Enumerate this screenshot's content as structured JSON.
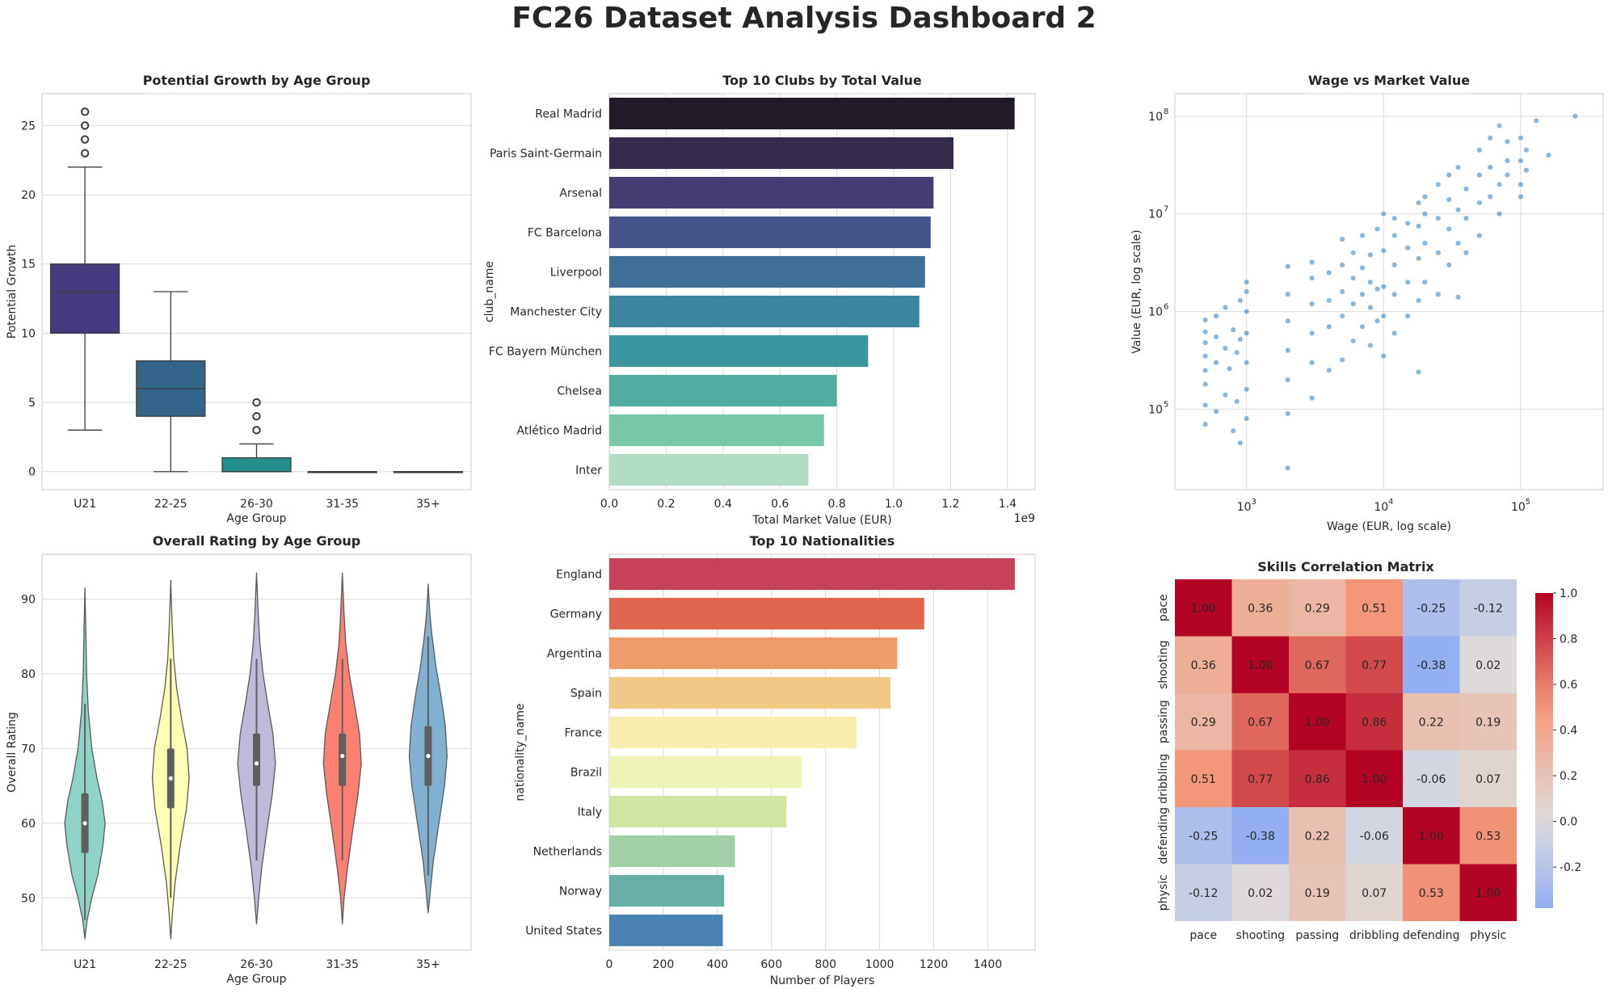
{
  "title": "FC26 Dataset Analysis Dashboard 2",
  "chart_data": [
    {
      "id": "growth_box",
      "type": "box",
      "title": "Potential Growth by Age Group",
      "xlabel": "Age Group",
      "ylabel": "Potential Growth",
      "categories": [
        "U21",
        "22-25",
        "26-30",
        "31-35",
        "35+"
      ],
      "ylim": [
        -1.3,
        27.3
      ],
      "yticks": [
        0,
        5,
        10,
        15,
        20,
        25
      ],
      "boxes": [
        {
          "q1": 10,
          "median": 13,
          "q3": 15,
          "whisker_low": 3,
          "whisker_high": 22,
          "outliers": [
            23,
            24,
            25,
            26
          ]
        },
        {
          "q1": 4,
          "median": 6,
          "q3": 8,
          "whisker_low": 0,
          "whisker_high": 13,
          "outliers": []
        },
        {
          "q1": 0,
          "median": 0,
          "q3": 1,
          "whisker_low": 0,
          "whisker_high": 2,
          "outliers": [
            3,
            4,
            5
          ]
        },
        {
          "q1": 0,
          "median": 0,
          "q3": 0,
          "whisker_low": 0,
          "whisker_high": 0,
          "outliers": []
        },
        {
          "q1": 0,
          "median": 0,
          "q3": 0,
          "whisker_low": 0,
          "whisker_high": 0,
          "outliers": []
        }
      ],
      "colors": [
        "#46397e",
        "#33658b",
        "#238f8b",
        "#48b36f",
        "#b2d637"
      ]
    },
    {
      "id": "clubs_bar",
      "type": "bar",
      "orientation": "horizontal",
      "title": "Top 10 Clubs by Total Value",
      "xlabel": "Total Market Value (EUR)",
      "ylabel": "club_name",
      "offset_label": "1e9",
      "categories": [
        "Real Madrid",
        "Paris Saint-Germain",
        "Arsenal",
        "FC Barcelona",
        "Liverpool",
        "Manchester City",
        "FC Bayern München",
        "Chelsea",
        "Atlético Madrid",
        "Inter"
      ],
      "values": [
        1.425,
        1.21,
        1.14,
        1.13,
        1.11,
        1.09,
        0.91,
        0.8,
        0.755,
        0.7
      ],
      "xlim": [
        0,
        1.497
      ],
      "xticks": [
        0.0,
        0.2,
        0.4,
        0.6,
        0.8,
        1.0,
        1.2,
        1.4
      ],
      "colors": [
        "#221a28",
        "#352b4a",
        "#433d73",
        "#45548d",
        "#3f6e97",
        "#3b869e",
        "#3a969d",
        "#4fae9f",
        "#78c7a8",
        "#b2ddc4"
      ]
    },
    {
      "id": "wage_scatter",
      "type": "scatter",
      "title": "Wage vs Market Value",
      "xlabel": "Wage (EUR, log scale)",
      "ylabel": "Value (EUR, log scale)",
      "xscale": "log",
      "yscale": "log",
      "xlim": [
        300,
        400000
      ],
      "ylim": [
        15000,
        170000000
      ],
      "xticks": [
        "10^3",
        "10^4",
        "10^5"
      ],
      "yticks": [
        "10^5",
        "10^6",
        "10^7",
        "10^8"
      ],
      "color": "#2a7bbf",
      "points": [
        [
          500,
          70000
        ],
        [
          500,
          110000
        ],
        [
          500,
          180000
        ],
        [
          500,
          250000
        ],
        [
          500,
          350000
        ],
        [
          500,
          480000
        ],
        [
          500,
          620000
        ],
        [
          500,
          820000
        ],
        [
          600,
          95000
        ],
        [
          600,
          300000
        ],
        [
          600,
          550000
        ],
        [
          600,
          900000
        ],
        [
          700,
          140000
        ],
        [
          700,
          420000
        ],
        [
          700,
          1100000
        ],
        [
          750,
          260000
        ],
        [
          800,
          60000
        ],
        [
          800,
          650000
        ],
        [
          850,
          120000
        ],
        [
          850,
          380000
        ],
        [
          900,
          45000
        ],
        [
          900,
          520000
        ],
        [
          900,
          1300000
        ],
        [
          1000,
          80000
        ],
        [
          1000,
          160000
        ],
        [
          1000,
          300000
        ],
        [
          1000,
          600000
        ],
        [
          1000,
          1000000
        ],
        [
          1000,
          1600000
        ],
        [
          1000,
          2000000
        ],
        [
          2000,
          25000
        ],
        [
          2000,
          90000
        ],
        [
          2000,
          200000
        ],
        [
          2000,
          400000
        ],
        [
          2000,
          800000
        ],
        [
          2000,
          1500000
        ],
        [
          2000,
          2900000
        ],
        [
          3000,
          130000
        ],
        [
          3000,
          300000
        ],
        [
          3000,
          600000
        ],
        [
          3000,
          1200000
        ],
        [
          3000,
          2200000
        ],
        [
          3000,
          3200000
        ],
        [
          4000,
          250000
        ],
        [
          4000,
          700000
        ],
        [
          4000,
          1300000
        ],
        [
          4000,
          2500000
        ],
        [
          5000,
          320000
        ],
        [
          5000,
          900000
        ],
        [
          5000,
          1600000
        ],
        [
          5000,
          3000000
        ],
        [
          5000,
          5500000
        ],
        [
          6000,
          500000
        ],
        [
          6000,
          1200000
        ],
        [
          6000,
          2200000
        ],
        [
          6000,
          4000000
        ],
        [
          7000,
          700000
        ],
        [
          7000,
          1500000
        ],
        [
          7000,
          2800000
        ],
        [
          7000,
          6000000
        ],
        [
          8000,
          450000
        ],
        [
          8000,
          1100000
        ],
        [
          8000,
          2000000
        ],
        [
          8000,
          3800000
        ],
        [
          9000,
          800000
        ],
        [
          9000,
          1700000
        ],
        [
          9000,
          7000000
        ],
        [
          10000,
          350000
        ],
        [
          10000,
          900000
        ],
        [
          10000,
          1800000
        ],
        [
          10000,
          4200000
        ],
        [
          10000,
          10000000
        ],
        [
          12000,
          600000
        ],
        [
          12000,
          1500000
        ],
        [
          12000,
          3000000
        ],
        [
          12000,
          6000000
        ],
        [
          12000,
          9000000
        ],
        [
          15000,
          900000
        ],
        [
          15000,
          2000000
        ],
        [
          15000,
          4500000
        ],
        [
          15000,
          8000000
        ],
        [
          18000,
          240000
        ],
        [
          18000,
          1300000
        ],
        [
          18000,
          3500000
        ],
        [
          18000,
          7500000
        ],
        [
          18000,
          13000000
        ],
        [
          20000,
          2000000
        ],
        [
          20000,
          5000000
        ],
        [
          20000,
          10000000
        ],
        [
          20000,
          15000000
        ],
        [
          25000,
          1500000
        ],
        [
          25000,
          4000000
        ],
        [
          25000,
          9000000
        ],
        [
          25000,
          20000000
        ],
        [
          30000,
          3000000
        ],
        [
          30000,
          7000000
        ],
        [
          30000,
          14000000
        ],
        [
          30000,
          25000000
        ],
        [
          35000,
          1400000
        ],
        [
          35000,
          5000000
        ],
        [
          35000,
          11000000
        ],
        [
          35000,
          30000000
        ],
        [
          40000,
          4000000
        ],
        [
          40000,
          9000000
        ],
        [
          40000,
          18000000
        ],
        [
          50000,
          6000000
        ],
        [
          50000,
          13000000
        ],
        [
          50000,
          25000000
        ],
        [
          50000,
          45000000
        ],
        [
          60000,
          15000000
        ],
        [
          60000,
          30000000
        ],
        [
          60000,
          60000000
        ],
        [
          70000,
          10000000
        ],
        [
          70000,
          20000000
        ],
        [
          70000,
          80000000
        ],
        [
          80000,
          25000000
        ],
        [
          80000,
          35000000
        ],
        [
          80000,
          55000000
        ],
        [
          100000,
          15000000
        ],
        [
          100000,
          20000000
        ],
        [
          100000,
          35000000
        ],
        [
          100000,
          60000000
        ],
        [
          110000,
          28000000
        ],
        [
          110000,
          45000000
        ],
        [
          130000,
          90000000
        ],
        [
          160000,
          40000000
        ],
        [
          250000,
          100000000
        ]
      ]
    },
    {
      "id": "rating_violin",
      "type": "violin",
      "title": "Overall Rating by Age Group",
      "xlabel": "Age Group",
      "ylabel": "Overall Rating",
      "categories": [
        "U21",
        "22-25",
        "26-30",
        "31-35",
        "35+"
      ],
      "ylim": [
        43,
        96
      ],
      "yticks": [
        50,
        60,
        70,
        80,
        90
      ],
      "violins": [
        {
          "min": 44.5,
          "max": 91.5,
          "q1": 56,
          "median": 60,
          "q3": 64,
          "wlow": 47,
          "whigh": 76,
          "profile": [
            [
              44.5,
              0
            ],
            [
              47,
              0.05
            ],
            [
              50,
              0.16
            ],
            [
              53,
              0.3
            ],
            [
              57,
              0.42
            ],
            [
              60,
              0.47
            ],
            [
              63,
              0.4
            ],
            [
              66,
              0.28
            ],
            [
              70,
              0.16
            ],
            [
              75,
              0.08
            ],
            [
              80,
              0.04
            ],
            [
              86,
              0.02
            ],
            [
              91.5,
              0
            ]
          ]
        },
        {
          "min": 44.5,
          "max": 92.5,
          "q1": 62,
          "median": 66,
          "q3": 70,
          "wlow": 50,
          "whigh": 82,
          "profile": [
            [
              44.5,
              0
            ],
            [
              48,
              0.04
            ],
            [
              52,
              0.1
            ],
            [
              57,
              0.22
            ],
            [
              62,
              0.37
            ],
            [
              66,
              0.43
            ],
            [
              70,
              0.38
            ],
            [
              74,
              0.25
            ],
            [
              78,
              0.14
            ],
            [
              82,
              0.07
            ],
            [
              87,
              0.03
            ],
            [
              92.5,
              0
            ]
          ]
        },
        {
          "min": 46.5,
          "max": 93.5,
          "q1": 65,
          "median": 68,
          "q3": 72,
          "wlow": 55,
          "whigh": 82,
          "profile": [
            [
              46.5,
              0
            ],
            [
              50,
              0.05
            ],
            [
              54,
              0.12
            ],
            [
              59,
              0.24
            ],
            [
              64,
              0.37
            ],
            [
              68,
              0.44
            ],
            [
              72,
              0.38
            ],
            [
              76,
              0.26
            ],
            [
              80,
              0.15
            ],
            [
              84,
              0.08
            ],
            [
              88,
              0.04
            ],
            [
              93.5,
              0
            ]
          ]
        },
        {
          "min": 46.5,
          "max": 93.5,
          "q1": 65,
          "median": 69,
          "q3": 72,
          "wlow": 55,
          "whigh": 82,
          "profile": [
            [
              46.5,
              0
            ],
            [
              50,
              0.04
            ],
            [
              54,
              0.12
            ],
            [
              59,
              0.24
            ],
            [
              64,
              0.37
            ],
            [
              68,
              0.44
            ],
            [
              72,
              0.4
            ],
            [
              76,
              0.28
            ],
            [
              80,
              0.16
            ],
            [
              84,
              0.08
            ],
            [
              88,
              0.04
            ],
            [
              93.5,
              0
            ]
          ]
        },
        {
          "min": 48,
          "max": 92,
          "q1": 65,
          "median": 69,
          "q3": 73,
          "wlow": 53,
          "whigh": 85,
          "profile": [
            [
              48,
              0
            ],
            [
              51,
              0.05
            ],
            [
              55,
              0.12
            ],
            [
              60,
              0.25
            ],
            [
              65,
              0.38
            ],
            [
              69,
              0.44
            ],
            [
              73,
              0.4
            ],
            [
              77,
              0.3
            ],
            [
              81,
              0.18
            ],
            [
              85,
              0.09
            ],
            [
              88,
              0.04
            ],
            [
              92,
              0
            ]
          ]
        }
      ],
      "colors": [
        "#8dd3c7",
        "#ffffb3",
        "#bebada",
        "#fb8072",
        "#80b1d3"
      ]
    },
    {
      "id": "nation_bar",
      "type": "bar",
      "orientation": "horizontal",
      "title": "Top 10 Nationalities",
      "xlabel": "Number of Players",
      "ylabel": "nationality_name",
      "categories": [
        "England",
        "Germany",
        "Argentina",
        "Spain",
        "France",
        "Brazil",
        "Italy",
        "Netherlands",
        "Norway",
        "United States"
      ],
      "values": [
        1500,
        1165,
        1065,
        1040,
        915,
        712,
        655,
        465,
        425,
        420
      ],
      "xlim": [
        0,
        1575
      ],
      "xticks": [
        0,
        200,
        400,
        600,
        800,
        1000,
        1200,
        1400
      ],
      "colors": [
        "#c7415b",
        "#e0674f",
        "#ef9d67",
        "#f0c985",
        "#f7eeae",
        "#eef3b5",
        "#d1e5a3",
        "#a1d0a7",
        "#68b0a6",
        "#4a82b4"
      ]
    },
    {
      "id": "corr_heatmap",
      "type": "heatmap",
      "title": "Skills Correlation Matrix",
      "labels": [
        "pace",
        "shooting",
        "passing",
        "dribbling",
        "defending",
        "physic"
      ],
      "matrix": [
        [
          1.0,
          0.36,
          0.29,
          0.51,
          -0.25,
          -0.12
        ],
        [
          0.36,
          1.0,
          0.67,
          0.77,
          -0.38,
          0.02
        ],
        [
          0.29,
          0.67,
          1.0,
          0.86,
          0.22,
          0.19
        ],
        [
          0.51,
          0.77,
          0.86,
          1.0,
          -0.06,
          0.07
        ],
        [
          -0.25,
          -0.38,
          0.22,
          -0.06,
          1.0,
          0.53
        ],
        [
          -0.12,
          0.02,
          0.19,
          0.07,
          0.53,
          1.0
        ]
      ],
      "cells": [
        [
          "1.00",
          "0.36",
          "0.29",
          "0.51",
          "-0.25",
          "-0.12"
        ],
        [
          "0.36",
          "1.00",
          "0.67",
          "0.77",
          "-0.38",
          "0.02"
        ],
        [
          "0.29",
          "0.67",
          "1.00",
          "0.86",
          "0.22",
          "0.19"
        ],
        [
          "0.51",
          "0.77",
          "0.86",
          "1.00",
          "-0.06",
          "0.07"
        ],
        [
          "-0.25",
          "-0.38",
          "0.22",
          "-0.06",
          "1.00",
          "0.53"
        ],
        [
          "-0.12",
          "0.02",
          "0.19",
          "0.07",
          "0.53",
          "1.00"
        ]
      ],
      "colorbar_ticks": [
        "1.0",
        "0.8",
        "0.6",
        "0.4",
        "0.2",
        "0.0",
        "-0.2"
      ],
      "colorbar_range": [
        -0.38,
        1.0
      ],
      "cmap": "coolwarm"
    }
  ]
}
